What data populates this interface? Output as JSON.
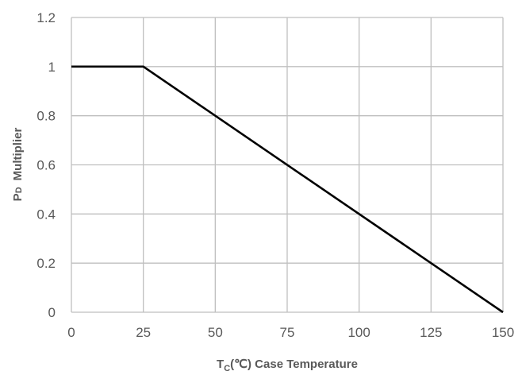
{
  "chart_data": {
    "type": "line",
    "title": "",
    "xlabel": {
      "main": "T",
      "sub": "C",
      "rest": "(℃) Case Temperature"
    },
    "ylabel": {
      "main": "P",
      "sub": "D",
      "rest": "Multiplier"
    },
    "xlim": [
      0,
      150
    ],
    "ylim": [
      0,
      1.2
    ],
    "xticks": [
      0,
      25,
      50,
      75,
      100,
      125,
      150
    ],
    "yticks": [
      0,
      0.2,
      0.4,
      0.6,
      0.8,
      1,
      1.2
    ],
    "xtick_labels": [
      "0",
      "25",
      "50",
      "75",
      "100",
      "125",
      "150"
    ],
    "ytick_labels": [
      "0",
      "0.2",
      "0.4",
      "0.6",
      "0.8",
      "1",
      "1.2"
    ],
    "grid": true,
    "series": [
      {
        "x": [
          0,
          25,
          150
        ],
        "y": [
          1,
          1,
          0
        ],
        "color": "#000000"
      }
    ],
    "colors": {
      "grid": "#bfbfbf",
      "text": "#595959",
      "line": "#000000"
    }
  }
}
